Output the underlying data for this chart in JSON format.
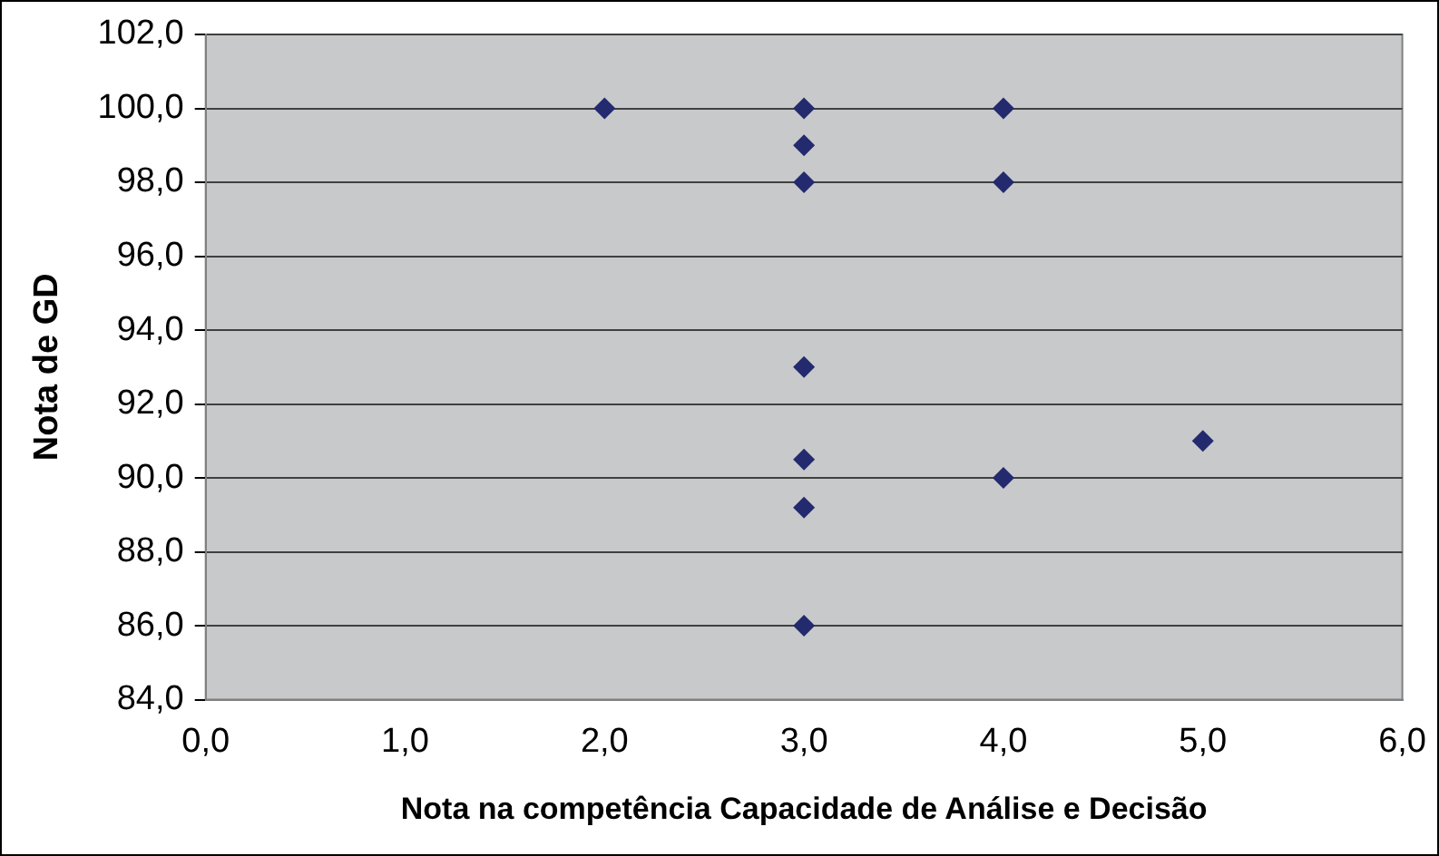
{
  "chart_data": {
    "type": "scatter",
    "xlabel": "Nota na competência Capacidade de Análise e Decisão",
    "ylabel": "Nota de GD",
    "x": [
      2,
      3,
      3,
      3,
      4,
      4,
      3,
      3,
      5,
      4,
      3,
      3
    ],
    "series": [
      {
        "color": "#232a6e",
        "values": [
          100,
          100,
          99,
          98,
          100,
          98,
          93,
          90.5,
          91,
          90,
          89.2,
          86
        ]
      }
    ],
    "xlim": [
      0,
      6
    ],
    "xticks": [
      {
        "value": 0,
        "label": "0,0"
      },
      {
        "value": 1,
        "label": "1,0"
      },
      {
        "value": 2,
        "label": "2,0"
      },
      {
        "value": 3,
        "label": "3,0"
      },
      {
        "value": 4,
        "label": "4,0"
      },
      {
        "value": 5,
        "label": "5,0"
      },
      {
        "value": 6,
        "label": "6,0"
      }
    ],
    "ylim": [
      84,
      102
    ],
    "yticks": [
      {
        "value": 84,
        "label": "84,0"
      },
      {
        "value": 86,
        "label": "86,0"
      },
      {
        "value": 88,
        "label": "88,0"
      },
      {
        "value": 90,
        "label": "90,0"
      },
      {
        "value": 92,
        "label": "92,0"
      },
      {
        "value": 94,
        "label": "94,0"
      },
      {
        "value": 96,
        "label": "96,0"
      },
      {
        "value": 98,
        "label": "98,0"
      },
      {
        "value": 100,
        "label": "100,0"
      },
      {
        "value": 102,
        "label": "102,0"
      }
    ],
    "grid": "y",
    "marker": "diamond",
    "legend": false
  }
}
